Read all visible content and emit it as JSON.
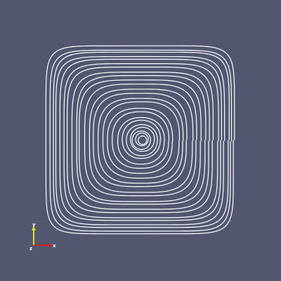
{
  "viewport": {
    "background_color": "#525770",
    "streamline_color": "#ffffff",
    "representation": "streamlines"
  },
  "orientation_axes": {
    "x_label": "x",
    "y_label": "y",
    "z_label": "z",
    "x_color": "#d62020",
    "y_color": "#e8e000",
    "z_color": "#20a020"
  }
}
